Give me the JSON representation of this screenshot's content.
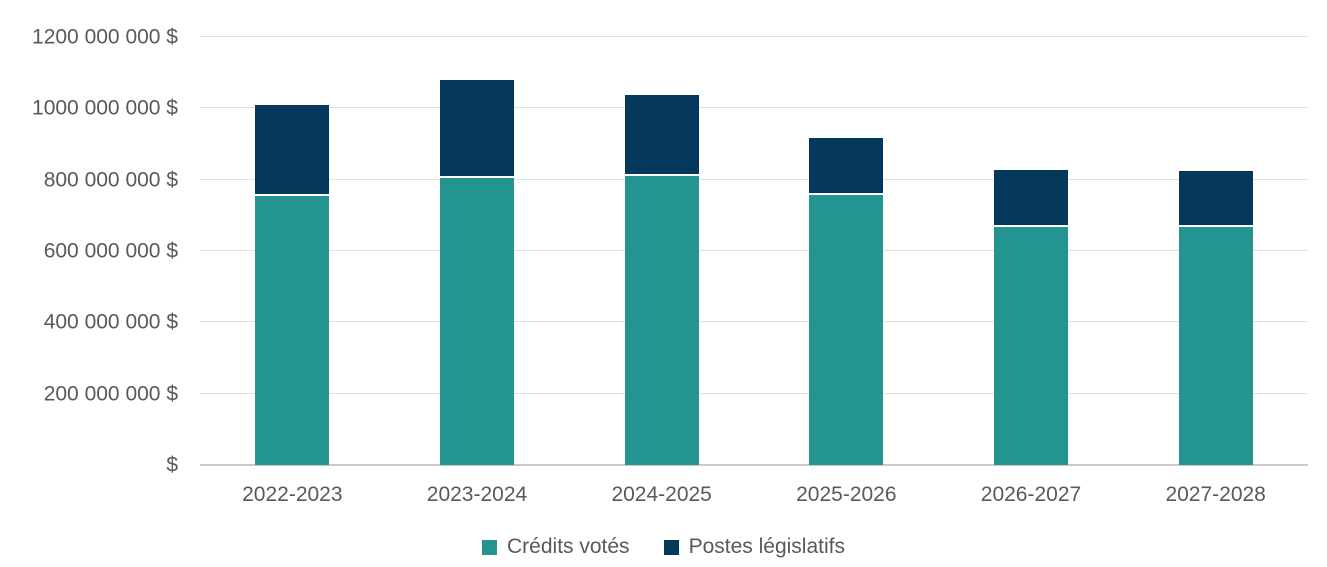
{
  "chart_data": {
    "type": "bar",
    "stacked": true,
    "title": "",
    "xlabel": "",
    "ylabel": "",
    "categories": [
      "2022-2023",
      "2023-2024",
      "2024-2025",
      "2025-2026",
      "2026-2027",
      "2027-2028"
    ],
    "series": [
      {
        "name": "Crédits votés",
        "color": "#23948F",
        "values": [
          755000000,
          805000000,
          810000000,
          758000000,
          668000000,
          666000000
        ]
      },
      {
        "name": "Postes législatifs",
        "color": "#04395C",
        "values": [
          255000000,
          275000000,
          228000000,
          158000000,
          158000000,
          157000000
        ]
      }
    ],
    "ylim": [
      0,
      1200000000
    ],
    "grid": true,
    "legend_position": "bottom",
    "y_ticks": [
      {
        "value": 1200000000,
        "label": "1200 000 000 $"
      },
      {
        "value": 1000000000,
        "label": "1000 000 000 $"
      },
      {
        "value": 800000000,
        "label": "800 000 000 $"
      },
      {
        "value": 600000000,
        "label": "600 000 000 $"
      },
      {
        "value": 400000000,
        "label": "400 000 000 $"
      },
      {
        "value": 200000000,
        "label": "200 000 000 $"
      },
      {
        "value": 0,
        "label": "$"
      }
    ]
  },
  "legend": {
    "items": [
      {
        "label": "Crédits votés",
        "color": "#23948F"
      },
      {
        "label": "Postes législatifs",
        "color": "#04395C"
      }
    ]
  },
  "colors": {
    "background": "#FFFFFF",
    "axis_text": "#595959",
    "gridline": "#E1E1E1",
    "axis_line": "#C9C9C9",
    "segment_separator": "#FFFFFF",
    "series_credits_votes": "#23948F",
    "series_postes_legislatifs": "#04395C"
  }
}
